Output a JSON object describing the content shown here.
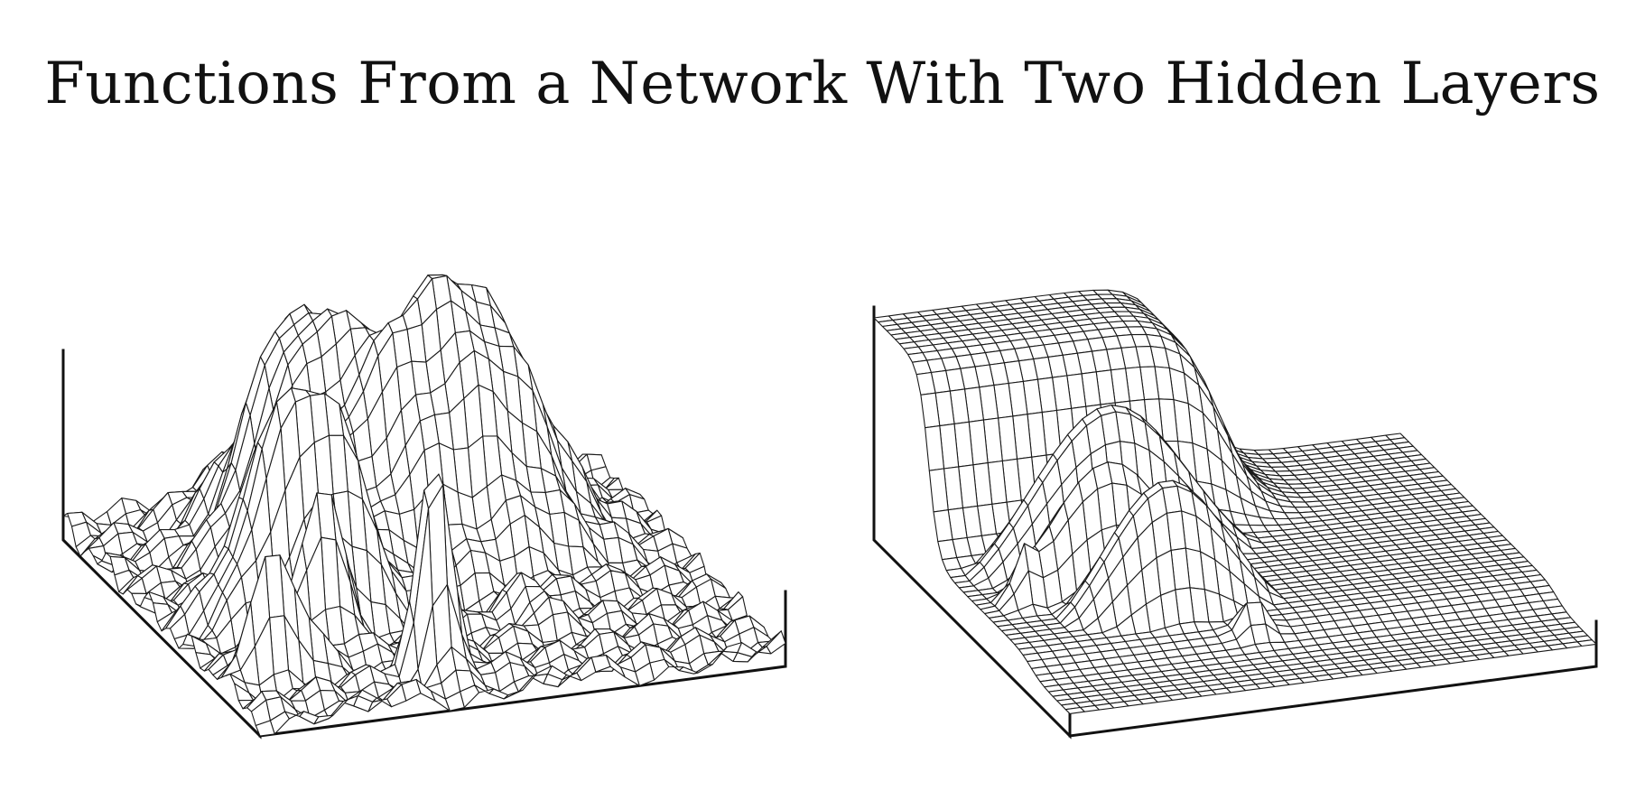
{
  "figure": {
    "title": "Functions From a Network With Two Hidden Layers",
    "line_color": "#1a1a1a",
    "background": "#ffffff"
  },
  "panels": [
    {
      "id": "left",
      "type": "wireframe-surface",
      "grid": [
        46,
        36
      ],
      "shape": "rugged",
      "heights": {
        "gaussians": [
          [
            0.38,
            0.55,
            0.35,
            0.1,
            0.16
          ],
          [
            0.27,
            0.33,
            0.24,
            0.07,
            0.08
          ],
          [
            0.12,
            0.34,
            0.1,
            0.08,
            0.11
          ],
          [
            0.55,
            0.2,
            0.26,
            0.05,
            0.07
          ],
          [
            0.6,
            0.3,
            0.22,
            0.04,
            0.06
          ],
          [
            0.7,
            0.23,
            0.2,
            0.03,
            0.04
          ],
          [
            0.8,
            0.1,
            0.16,
            0.02,
            0.05
          ],
          [
            0.88,
            0.38,
            0.3,
            0.025,
            0.03
          ],
          [
            0.4,
            0.7,
            0.08,
            0.12,
            0.08
          ],
          [
            0.72,
            0.62,
            0.05,
            0.04,
            0.04
          ]
        ],
        "base": 0.02,
        "noise": 0.012
      }
    },
    {
      "id": "right",
      "type": "wireframe-surface",
      "grid": [
        46,
        36
      ],
      "shape": "terraced",
      "heights": {
        "plateau": 0.3,
        "lower_terrace": 0.05,
        "ridges": [
          [
            0.4,
            0.3,
            0.26,
            0.06,
            0.15
          ],
          [
            0.52,
            0.25,
            0.22,
            0.05,
            0.12
          ],
          [
            0.64,
            0.32,
            0.22,
            0.06,
            0.12
          ]
        ],
        "spikes": [
          [
            0.78,
            0.43,
            0.05,
            0.02,
            0.02
          ],
          [
            0.55,
            0.08,
            0.06,
            0.02,
            0.02
          ]
        ]
      }
    }
  ]
}
